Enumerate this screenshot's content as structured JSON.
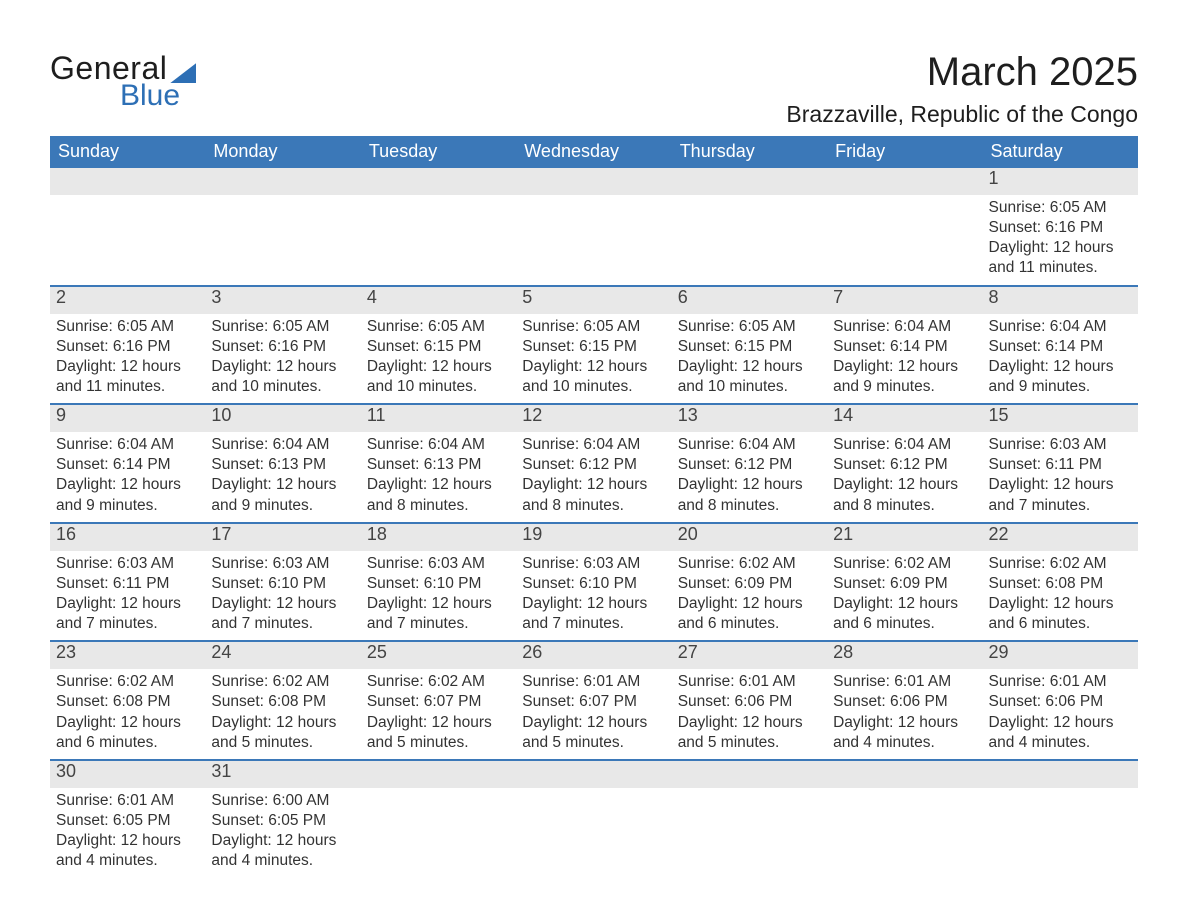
{
  "logo": {
    "word1": "General",
    "word2": "Blue"
  },
  "title": "March 2025",
  "location": "Brazzaville, Republic of the Congo",
  "colors": {
    "header_bg": "#3b78b8",
    "header_fg": "#ffffff",
    "daynum_bg": "#e8e8e8",
    "text": "#333333",
    "rule": "#3b78b8",
    "logo_accent": "#2d6fb5"
  },
  "weekdays": [
    "Sunday",
    "Monday",
    "Tuesday",
    "Wednesday",
    "Thursday",
    "Friday",
    "Saturday"
  ],
  "weeks": [
    [
      null,
      null,
      null,
      null,
      null,
      null,
      {
        "n": "1",
        "sunrise": "Sunrise: 6:05 AM",
        "sunset": "Sunset: 6:16 PM",
        "daylight": "Daylight: 12 hours and 11 minutes."
      }
    ],
    [
      {
        "n": "2",
        "sunrise": "Sunrise: 6:05 AM",
        "sunset": "Sunset: 6:16 PM",
        "daylight": "Daylight: 12 hours and 11 minutes."
      },
      {
        "n": "3",
        "sunrise": "Sunrise: 6:05 AM",
        "sunset": "Sunset: 6:16 PM",
        "daylight": "Daylight: 12 hours and 10 minutes."
      },
      {
        "n": "4",
        "sunrise": "Sunrise: 6:05 AM",
        "sunset": "Sunset: 6:15 PM",
        "daylight": "Daylight: 12 hours and 10 minutes."
      },
      {
        "n": "5",
        "sunrise": "Sunrise: 6:05 AM",
        "sunset": "Sunset: 6:15 PM",
        "daylight": "Daylight: 12 hours and 10 minutes."
      },
      {
        "n": "6",
        "sunrise": "Sunrise: 6:05 AM",
        "sunset": "Sunset: 6:15 PM",
        "daylight": "Daylight: 12 hours and 10 minutes."
      },
      {
        "n": "7",
        "sunrise": "Sunrise: 6:04 AM",
        "sunset": "Sunset: 6:14 PM",
        "daylight": "Daylight: 12 hours and 9 minutes."
      },
      {
        "n": "8",
        "sunrise": "Sunrise: 6:04 AM",
        "sunset": "Sunset: 6:14 PM",
        "daylight": "Daylight: 12 hours and 9 minutes."
      }
    ],
    [
      {
        "n": "9",
        "sunrise": "Sunrise: 6:04 AM",
        "sunset": "Sunset: 6:14 PM",
        "daylight": "Daylight: 12 hours and 9 minutes."
      },
      {
        "n": "10",
        "sunrise": "Sunrise: 6:04 AM",
        "sunset": "Sunset: 6:13 PM",
        "daylight": "Daylight: 12 hours and 9 minutes."
      },
      {
        "n": "11",
        "sunrise": "Sunrise: 6:04 AM",
        "sunset": "Sunset: 6:13 PM",
        "daylight": "Daylight: 12 hours and 8 minutes."
      },
      {
        "n": "12",
        "sunrise": "Sunrise: 6:04 AM",
        "sunset": "Sunset: 6:12 PM",
        "daylight": "Daylight: 12 hours and 8 minutes."
      },
      {
        "n": "13",
        "sunrise": "Sunrise: 6:04 AM",
        "sunset": "Sunset: 6:12 PM",
        "daylight": "Daylight: 12 hours and 8 minutes."
      },
      {
        "n": "14",
        "sunrise": "Sunrise: 6:04 AM",
        "sunset": "Sunset: 6:12 PM",
        "daylight": "Daylight: 12 hours and 8 minutes."
      },
      {
        "n": "15",
        "sunrise": "Sunrise: 6:03 AM",
        "sunset": "Sunset: 6:11 PM",
        "daylight": "Daylight: 12 hours and 7 minutes."
      }
    ],
    [
      {
        "n": "16",
        "sunrise": "Sunrise: 6:03 AM",
        "sunset": "Sunset: 6:11 PM",
        "daylight": "Daylight: 12 hours and 7 minutes."
      },
      {
        "n": "17",
        "sunrise": "Sunrise: 6:03 AM",
        "sunset": "Sunset: 6:10 PM",
        "daylight": "Daylight: 12 hours and 7 minutes."
      },
      {
        "n": "18",
        "sunrise": "Sunrise: 6:03 AM",
        "sunset": "Sunset: 6:10 PM",
        "daylight": "Daylight: 12 hours and 7 minutes."
      },
      {
        "n": "19",
        "sunrise": "Sunrise: 6:03 AM",
        "sunset": "Sunset: 6:10 PM",
        "daylight": "Daylight: 12 hours and 7 minutes."
      },
      {
        "n": "20",
        "sunrise": "Sunrise: 6:02 AM",
        "sunset": "Sunset: 6:09 PM",
        "daylight": "Daylight: 12 hours and 6 minutes."
      },
      {
        "n": "21",
        "sunrise": "Sunrise: 6:02 AM",
        "sunset": "Sunset: 6:09 PM",
        "daylight": "Daylight: 12 hours and 6 minutes."
      },
      {
        "n": "22",
        "sunrise": "Sunrise: 6:02 AM",
        "sunset": "Sunset: 6:08 PM",
        "daylight": "Daylight: 12 hours and 6 minutes."
      }
    ],
    [
      {
        "n": "23",
        "sunrise": "Sunrise: 6:02 AM",
        "sunset": "Sunset: 6:08 PM",
        "daylight": "Daylight: 12 hours and 6 minutes."
      },
      {
        "n": "24",
        "sunrise": "Sunrise: 6:02 AM",
        "sunset": "Sunset: 6:08 PM",
        "daylight": "Daylight: 12 hours and 5 minutes."
      },
      {
        "n": "25",
        "sunrise": "Sunrise: 6:02 AM",
        "sunset": "Sunset: 6:07 PM",
        "daylight": "Daylight: 12 hours and 5 minutes."
      },
      {
        "n": "26",
        "sunrise": "Sunrise: 6:01 AM",
        "sunset": "Sunset: 6:07 PM",
        "daylight": "Daylight: 12 hours and 5 minutes."
      },
      {
        "n": "27",
        "sunrise": "Sunrise: 6:01 AM",
        "sunset": "Sunset: 6:06 PM",
        "daylight": "Daylight: 12 hours and 5 minutes."
      },
      {
        "n": "28",
        "sunrise": "Sunrise: 6:01 AM",
        "sunset": "Sunset: 6:06 PM",
        "daylight": "Daylight: 12 hours and 4 minutes."
      },
      {
        "n": "29",
        "sunrise": "Sunrise: 6:01 AM",
        "sunset": "Sunset: 6:06 PM",
        "daylight": "Daylight: 12 hours and 4 minutes."
      }
    ],
    [
      {
        "n": "30",
        "sunrise": "Sunrise: 6:01 AM",
        "sunset": "Sunset: 6:05 PM",
        "daylight": "Daylight: 12 hours and 4 minutes."
      },
      {
        "n": "31",
        "sunrise": "Sunrise: 6:00 AM",
        "sunset": "Sunset: 6:05 PM",
        "daylight": "Daylight: 12 hours and 4 minutes."
      },
      null,
      null,
      null,
      null,
      null
    ]
  ]
}
